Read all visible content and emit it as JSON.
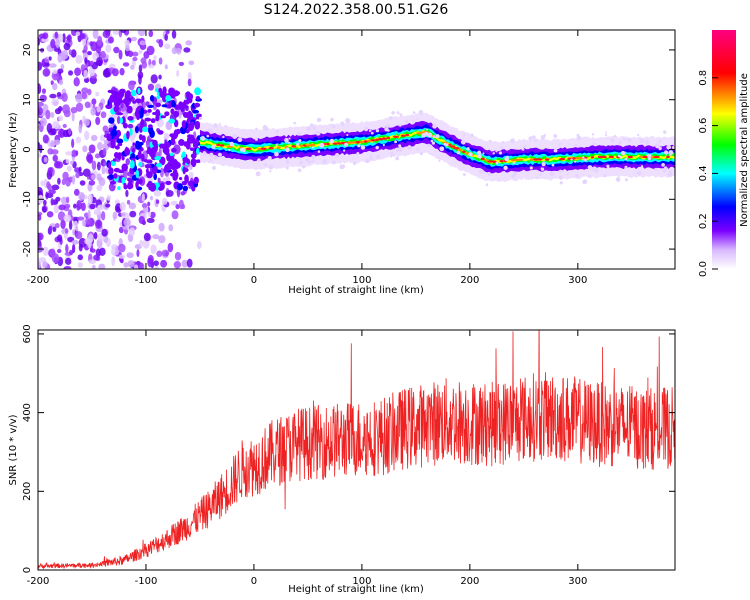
{
  "title": "S124.2022.358.00.51.G26",
  "chart_data": [
    {
      "type": "heatmap",
      "xlabel": "Height of straight line (km)",
      "ylabel": "Frequency (Hz)",
      "xlim": [
        -200,
        390
      ],
      "ylim": [
        -24,
        24
      ],
      "xticks": [
        -200,
        -100,
        0,
        100,
        200,
        300
      ],
      "yticks": [
        -20,
        -10,
        0,
        10,
        20
      ],
      "colorbar": {
        "label": "Normalized spectral amplitude",
        "range": [
          0,
          1
        ],
        "ticks": [
          "0.0",
          "0.2",
          "0.4",
          "0.6",
          "0.8"
        ],
        "colors": [
          "#ffffff",
          "#d9b8ff",
          "#7a00ff",
          "#0000ff",
          "#00ffff",
          "#00ff00",
          "#ffff00",
          "#ff0000",
          "#ff0080"
        ]
      },
      "ridge": {
        "x": [
          -50,
          -20,
          0,
          30,
          60,
          100,
          130,
          160,
          180,
          200,
          220,
          250,
          280,
          320,
          360,
          390
        ],
        "frequency": [
          1.5,
          0.5,
          0,
          0.5,
          1,
          1.5,
          2.5,
          3.5,
          1,
          -1,
          -2.5,
          -2,
          -2,
          -1.5,
          -1.5,
          -1.5
        ]
      }
    },
    {
      "type": "line",
      "xlabel": "Height of straight line (km)",
      "ylabel": "SNR (10 * v/v)",
      "xlim": [
        -200,
        390
      ],
      "ylim": [
        0,
        610
      ],
      "xticks": [
        -200,
        -100,
        0,
        100,
        200,
        300
      ],
      "yticks": [
        0,
        200,
        400,
        600
      ],
      "color": "#ee2222",
      "envelope": {
        "x": [
          -200,
          -150,
          -120,
          -100,
          -80,
          -60,
          -40,
          -20,
          -10,
          0,
          20,
          40,
          60,
          80,
          100,
          120,
          140,
          160,
          180,
          200,
          220,
          240,
          260,
          280,
          300,
          320,
          340,
          360,
          390
        ],
        "snr": [
          10,
          12,
          25,
          50,
          80,
          115,
          160,
          220,
          260,
          265,
          300,
          320,
          325,
          330,
          335,
          340,
          360,
          370,
          380,
          375,
          370,
          380,
          390,
          390,
          380,
          370,
          365,
          360,
          360
        ]
      }
    }
  ]
}
